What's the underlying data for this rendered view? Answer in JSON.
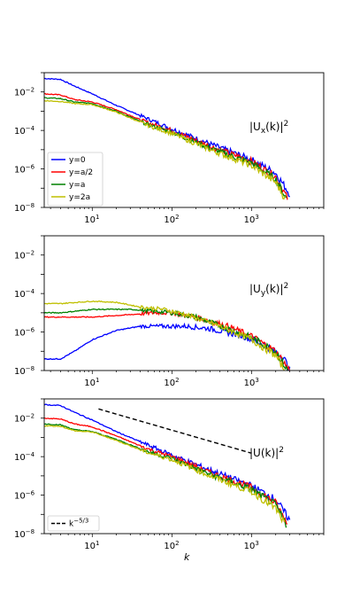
{
  "chart_data": [
    {
      "type": "line",
      "annotation": "|U_x(k)|^2",
      "annotation_parts": [
        "|U",
        "x",
        "(k)|",
        "2"
      ],
      "x_scale": "log",
      "y_scale": "log",
      "xlim": [
        2.5,
        8000
      ],
      "ylim": [
        1e-08,
        0.1
      ],
      "y_ticks": [
        "10^-2",
        "10^-4",
        "10^-6",
        "10^-8"
      ],
      "x_ticks": [
        "10^1",
        "10^2",
        "10^3"
      ],
      "legend": {
        "location": "lower left"
      },
      "series": [
        {
          "name": "y=0",
          "color": "#0000ff",
          "points": [
            [
              2.5,
              0.05
            ],
            [
              4,
              0.045
            ],
            [
              6,
              0.02
            ],
            [
              10,
              0.008
            ],
            [
              20,
              0.002
            ],
            [
              50,
              0.0004
            ],
            [
              100,
              0.00012
            ],
            [
              300,
              2e-05
            ],
            [
              1000,
              3e-06
            ],
            [
              2000,
              6e-07
            ],
            [
              3000,
              5e-08
            ]
          ]
        },
        {
          "name": "y=a/2",
          "color": "#ff0000",
          "points": [
            [
              2.5,
              0.008
            ],
            [
              4,
              0.007
            ],
            [
              6,
              0.004
            ],
            [
              10,
              0.003
            ],
            [
              20,
              0.0012
            ],
            [
              50,
              0.00025
            ],
            [
              100,
              0.0001
            ],
            [
              300,
              1.5e-05
            ],
            [
              1000,
              2.5e-06
            ],
            [
              2000,
              4e-07
            ],
            [
              2800,
              3e-08
            ]
          ]
        },
        {
          "name": "y=a",
          "color": "#008000",
          "points": [
            [
              2.5,
              0.005
            ],
            [
              4,
              0.0045
            ],
            [
              6,
              0.003
            ],
            [
              10,
              0.0025
            ],
            [
              20,
              0.001
            ],
            [
              50,
              0.0002
            ],
            [
              100,
              8e-05
            ],
            [
              300,
              1.2e-05
            ],
            [
              1000,
              2e-06
            ],
            [
              2000,
              3e-07
            ],
            [
              2700,
              3e-08
            ]
          ]
        },
        {
          "name": "y=2a",
          "color": "#bfbf00",
          "points": [
            [
              2.5,
              0.0035
            ],
            [
              4,
              0.0032
            ],
            [
              6,
              0.0025
            ],
            [
              10,
              0.0022
            ],
            [
              20,
              0.0009
            ],
            [
              50,
              0.00018
            ],
            [
              100,
              7e-05
            ],
            [
              300,
              1e-05
            ],
            [
              1000,
              1.5e-06
            ],
            [
              2000,
              2e-07
            ],
            [
              2600,
              3e-08
            ]
          ]
        }
      ]
    },
    {
      "type": "line",
      "annotation": "|U_y(k)|^2",
      "annotation_parts": [
        "|U",
        "y",
        "(k)|",
        "2"
      ],
      "x_scale": "log",
      "y_scale": "log",
      "xlim": [
        2.5,
        8000
      ],
      "ylim": [
        1e-08,
        0.1
      ],
      "y_ticks": [
        "10^-2",
        "10^-4",
        "10^-6",
        "10^-8"
      ],
      "x_ticks": [
        "10^1",
        "10^2",
        "10^3"
      ],
      "series": [
        {
          "name": "y=0",
          "color": "#0000ff",
          "points": [
            [
              2.5,
              4e-08
            ],
            [
              4,
              4e-08
            ],
            [
              6,
              1e-07
            ],
            [
              10,
              4e-07
            ],
            [
              20,
              1.2e-06
            ],
            [
              40,
              2e-06
            ],
            [
              80,
              2e-06
            ],
            [
              150,
              2e-06
            ],
            [
              300,
              1.5e-06
            ],
            [
              800,
              6e-07
            ],
            [
              1500,
              2e-07
            ],
            [
              2500,
              5e-08
            ],
            [
              3000,
              1e-08
            ]
          ]
        },
        {
          "name": "y=a/2",
          "color": "#ff0000",
          "points": [
            [
              2.5,
              6e-06
            ],
            [
              4,
              6e-06
            ],
            [
              10,
              6e-06
            ],
            [
              30,
              8e-06
            ],
            [
              60,
              1e-05
            ],
            [
              100,
              1e-05
            ],
            [
              200,
              6e-06
            ],
            [
              500,
              2e-06
            ],
            [
              1000,
              6e-07
            ],
            [
              2000,
              1e-07
            ],
            [
              3000,
              1e-08
            ]
          ]
        },
        {
          "name": "y=a",
          "color": "#008000",
          "points": [
            [
              2.5,
              1e-05
            ],
            [
              4,
              1e-05
            ],
            [
              10,
              1.5e-05
            ],
            [
              30,
              1.5e-05
            ],
            [
              60,
              1.2e-05
            ],
            [
              100,
              1e-05
            ],
            [
              200,
              6e-06
            ],
            [
              500,
              1.5e-06
            ],
            [
              1000,
              5e-07
            ],
            [
              2000,
              1e-07
            ],
            [
              2800,
              1e-08
            ]
          ]
        },
        {
          "name": "y=2a",
          "color": "#bfbf00",
          "points": [
            [
              2.5,
              3e-05
            ],
            [
              4,
              3e-05
            ],
            [
              10,
              4e-05
            ],
            [
              20,
              3.5e-05
            ],
            [
              40,
              2e-05
            ],
            [
              80,
              1.5e-05
            ],
            [
              150,
              8e-06
            ],
            [
              400,
              2e-06
            ],
            [
              1000,
              4e-07
            ],
            [
              2000,
              6e-08
            ],
            [
              2600,
              1e-08
            ]
          ]
        }
      ]
    },
    {
      "type": "line",
      "annotation": "|U(k)|^2",
      "annotation_parts": [
        "|U(k)|",
        "2"
      ],
      "xlabel": "k",
      "x_scale": "log",
      "y_scale": "log",
      "xlim": [
        2.5,
        8000
      ],
      "ylim": [
        1e-08,
        0.1
      ],
      "y_ticks": [
        "10^-2",
        "10^-4",
        "10^-6",
        "10^-8"
      ],
      "x_ticks": [
        "10^1",
        "10^2",
        "10^3"
      ],
      "legend": {
        "location": "lower left",
        "entries": [
          "k^-5/3"
        ]
      },
      "reference_line": {
        "label": "k^-5/3",
        "slope": -1.6667,
        "points": [
          [
            12,
            0.03
          ],
          [
            1000,
            0.00015
          ]
        ],
        "color": "#000000",
        "style": "dashed"
      },
      "series": [
        {
          "name": "y=0",
          "color": "#0000ff",
          "points": [
            [
              2.5,
              0.05
            ],
            [
              4,
              0.045
            ],
            [
              6,
              0.02
            ],
            [
              10,
              0.008
            ],
            [
              20,
              0.002
            ],
            [
              50,
              0.0004
            ],
            [
              100,
              0.00012
            ],
            [
              300,
              2e-05
            ],
            [
              1000,
              3e-06
            ],
            [
              2000,
              6e-07
            ],
            [
              3000,
              5e-08
            ]
          ]
        },
        {
          "name": "y=a/2",
          "color": "#ff0000",
          "points": [
            [
              2.5,
              0.01
            ],
            [
              4,
              0.009
            ],
            [
              6,
              0.005
            ],
            [
              10,
              0.0035
            ],
            [
              20,
              0.0012
            ],
            [
              50,
              0.00025
            ],
            [
              100,
              0.0001
            ],
            [
              300,
              1.5e-05
            ],
            [
              1000,
              2.5e-06
            ],
            [
              2000,
              4e-07
            ],
            [
              2800,
              3e-08
            ]
          ]
        },
        {
          "name": "y=a",
          "color": "#008000",
          "points": [
            [
              2.5,
              0.005
            ],
            [
              4,
              0.0045
            ],
            [
              6,
              0.0025
            ],
            [
              10,
              0.002
            ],
            [
              20,
              0.0008
            ],
            [
              50,
              0.00018
            ],
            [
              100,
              8e-05
            ],
            [
              300,
              1.2e-05
            ],
            [
              1000,
              2e-06
            ],
            [
              2000,
              3e-07
            ],
            [
              2700,
              3e-08
            ]
          ]
        },
        {
          "name": "y=2a",
          "color": "#bfbf00",
          "points": [
            [
              2.5,
              0.004
            ],
            [
              4,
              0.0038
            ],
            [
              6,
              0.0022
            ],
            [
              10,
              0.0019
            ],
            [
              20,
              0.0007
            ],
            [
              50,
              0.00016
            ],
            [
              100,
              7e-05
            ],
            [
              300,
              1e-05
            ],
            [
              1000,
              1.5e-06
            ],
            [
              2000,
              2e-07
            ],
            [
              2600,
              3e-08
            ]
          ]
        }
      ]
    }
  ]
}
